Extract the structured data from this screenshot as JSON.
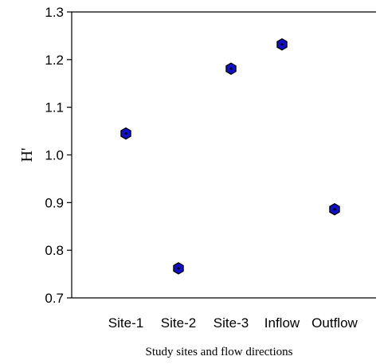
{
  "chart_data": {
    "type": "scatter",
    "categories": [
      "Site-1",
      "Site-2",
      "Site-3",
      "Inflow",
      "Outflow"
    ],
    "values": [
      1.045,
      0.762,
      1.181,
      1.232,
      0.886
    ],
    "xlabel": "Study sites and flow directions",
    "ylabel": "H'",
    "ylim": [
      0.7,
      1.3
    ],
    "yticks": [
      "0.7",
      "0.8",
      "0.9",
      "1.0",
      "1.1",
      "1.2",
      "1.3"
    ],
    "grid": false,
    "legend": "none",
    "marker": "hexagon",
    "marker_color": "#1010c8"
  }
}
